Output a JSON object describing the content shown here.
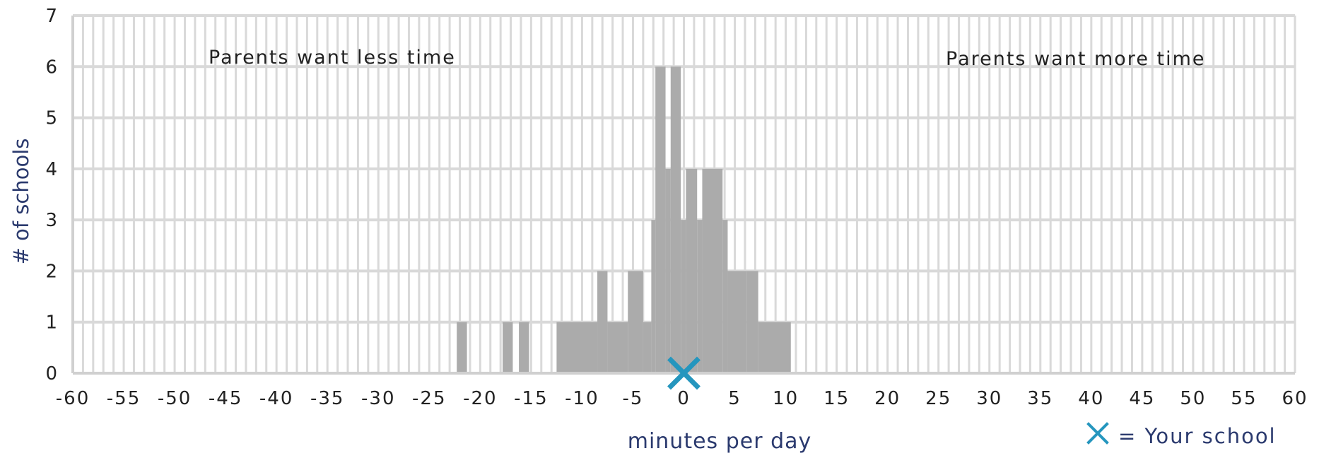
{
  "chart_data": {
    "type": "bar",
    "xlabel": "minutes per day",
    "ylabel": "# of schools",
    "xlim": [
      -60,
      60
    ],
    "ylim": [
      0,
      7
    ],
    "xticks": [
      -60,
      -55,
      -50,
      -45,
      -40,
      -35,
      -30,
      -25,
      -20,
      -15,
      -10,
      -5,
      0,
      5,
      10,
      15,
      20,
      25,
      30,
      35,
      40,
      45,
      50,
      55,
      60
    ],
    "yticks": [
      0,
      1,
      2,
      3,
      4,
      5,
      6,
      7
    ],
    "grid": true,
    "annotations": {
      "left": "Parents want less time",
      "right": "Parents want more time"
    },
    "legend": {
      "marker": "x",
      "label": "= Your school",
      "placement": "bottom-right"
    },
    "your_school": {
      "x": 0,
      "y": 0
    },
    "bar_color": "#ababab",
    "marker_color": "#2596be",
    "axis_label_color": "#2b3a6e",
    "bars": [
      {
        "x0": -22.3,
        "x1": -21.3,
        "count": 1
      },
      {
        "x0": -17.8,
        "x1": -16.8,
        "count": 1
      },
      {
        "x0": -16.2,
        "x1": -15.2,
        "count": 1
      },
      {
        "x0": -12.5,
        "x1": -8.5,
        "count": 1
      },
      {
        "x0": -8.5,
        "x1": -7.5,
        "count": 2
      },
      {
        "x0": -7.5,
        "x1": -5.5,
        "count": 1
      },
      {
        "x0": -5.5,
        "x1": -4.0,
        "count": 2
      },
      {
        "x0": -4.0,
        "x1": -3.2,
        "count": 1
      },
      {
        "x0": -3.2,
        "x1": -2.8,
        "count": 3
      },
      {
        "x0": -2.8,
        "x1": -1.8,
        "count": 6
      },
      {
        "x0": -1.8,
        "x1": -1.3,
        "count": 4
      },
      {
        "x0": -1.3,
        "x1": -0.3,
        "count": 6
      },
      {
        "x0": -0.3,
        "x1": 0.2,
        "count": 3
      },
      {
        "x0": 0.2,
        "x1": 1.3,
        "count": 4
      },
      {
        "x0": 1.3,
        "x1": 1.8,
        "count": 3
      },
      {
        "x0": 1.8,
        "x1": 3.8,
        "count": 4
      },
      {
        "x0": 3.8,
        "x1": 4.3,
        "count": 3
      },
      {
        "x0": 4.3,
        "x1": 6.2,
        "count": 2
      },
      {
        "x0": 6.2,
        "x1": 7.3,
        "count": 2
      },
      {
        "x0": 7.3,
        "x1": 10.5,
        "count": 1
      }
    ]
  }
}
